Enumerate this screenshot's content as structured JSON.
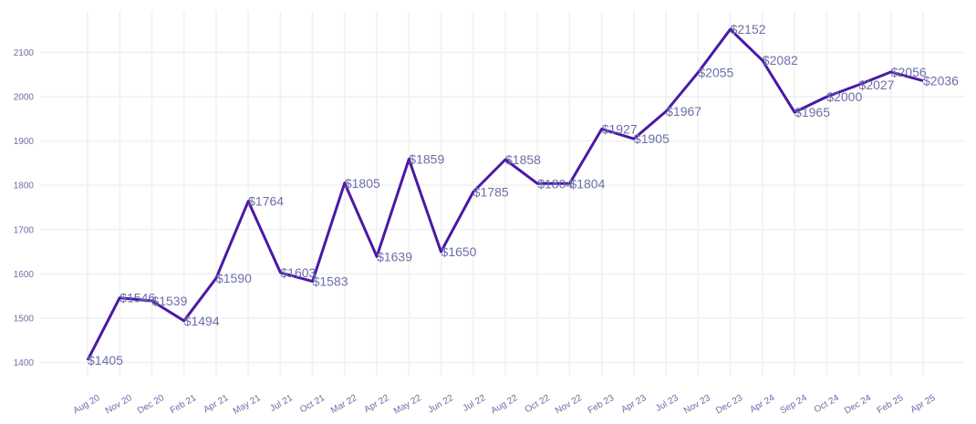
{
  "chart_data": {
    "type": "line",
    "title": "",
    "xlabel": "",
    "ylabel": "",
    "ylim": [
      1370,
      2165
    ],
    "yticks": [
      1400,
      1500,
      1600,
      1700,
      1800,
      1900,
      2000,
      2100
    ],
    "grid": true,
    "line_color": "#4a19a5",
    "label_color": "#6b6fa8",
    "categories": [
      "Aug 20",
      "Nov 20",
      "Dec 20",
      "Feb 21",
      "Apr 21",
      "May 21",
      "Jul 21",
      "Oct 21",
      "Mar 22",
      "Apr 22",
      "May 22",
      "Jun 22",
      "Jul 22",
      "Aug 22",
      "Oct 22",
      "Nov 22",
      "Feb 23",
      "Apr 23",
      "Jul 23",
      "Nov 23",
      "Dec 23",
      "Apr 24",
      "Sep 24",
      "Oct 24",
      "Dec 24",
      "Feb 25",
      "Apr 25"
    ],
    "values": [
      1405,
      1546,
      1539,
      1494,
      1590,
      1764,
      1603,
      1583,
      1805,
      1639,
      1859,
      1650,
      1785,
      1858,
      1804,
      1804,
      1927,
      1905,
      1967,
      2055,
      2152,
      2082,
      1965,
      2000,
      2027,
      2056,
      2036
    ],
    "data_labels": [
      "$1405",
      "$1546",
      "$1539",
      "$1494",
      "$1590",
      "$1764",
      "$1603",
      "$1583",
      "$1805",
      "$1639",
      "$1859",
      "$1650",
      "$1785",
      "$1858",
      "$1804",
      "$1804",
      "$1927",
      "$1905",
      "$1967",
      "$2055",
      "$2152",
      "$2082",
      "$1965",
      "$2000",
      "$2027",
      "$2056",
      "$2036"
    ]
  }
}
